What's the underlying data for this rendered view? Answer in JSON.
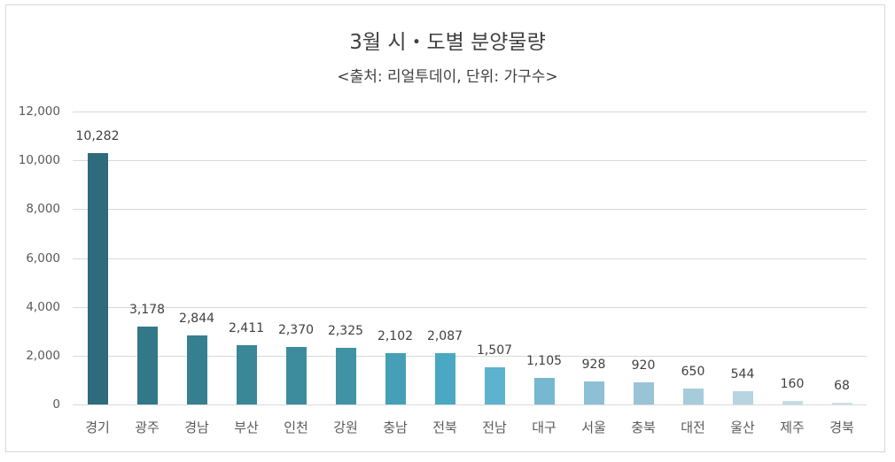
{
  "chart_data": {
    "type": "bar",
    "title": "3월 시・도별 분양물량",
    "subtitle": "<출처: 리얼투데이, 단위: 가구수>",
    "xlabel": "",
    "ylabel": "",
    "ylim": [
      0,
      12000
    ],
    "yticks": [
      "0",
      "2,000",
      "4,000",
      "6,000",
      "8,000",
      "10,000",
      "12,000"
    ],
    "grid": true,
    "legend": "none",
    "categories": [
      "경기",
      "광주",
      "경남",
      "부산",
      "인천",
      "강원",
      "충남",
      "전북",
      "전남",
      "대구",
      "서울",
      "충북",
      "대전",
      "울산",
      "제주",
      "경북"
    ],
    "values": [
      10282,
      3178,
      2844,
      2411,
      2370,
      2325,
      2102,
      2087,
      1507,
      1105,
      928,
      920,
      650,
      544,
      160,
      68
    ],
    "value_labels": [
      "10,282",
      "3,178",
      "2,844",
      "2,411",
      "2,370",
      "2,325",
      "2,102",
      "2,087",
      "1,507",
      "1,105",
      "928",
      "920",
      "650",
      "544",
      "160",
      "68"
    ],
    "colors": [
      "#2E6B7C",
      "#327888",
      "#367F90",
      "#3A8798",
      "#3D8C9D",
      "#4093A5",
      "#45A0B7",
      "#4AA8C2",
      "#5DB2CF",
      "#76B8CF",
      "#8DC0D4",
      "#98C4D6",
      "#A6CCDB",
      "#B6D5E0",
      "#C4DCE5",
      "#CFE1E8"
    ]
  }
}
